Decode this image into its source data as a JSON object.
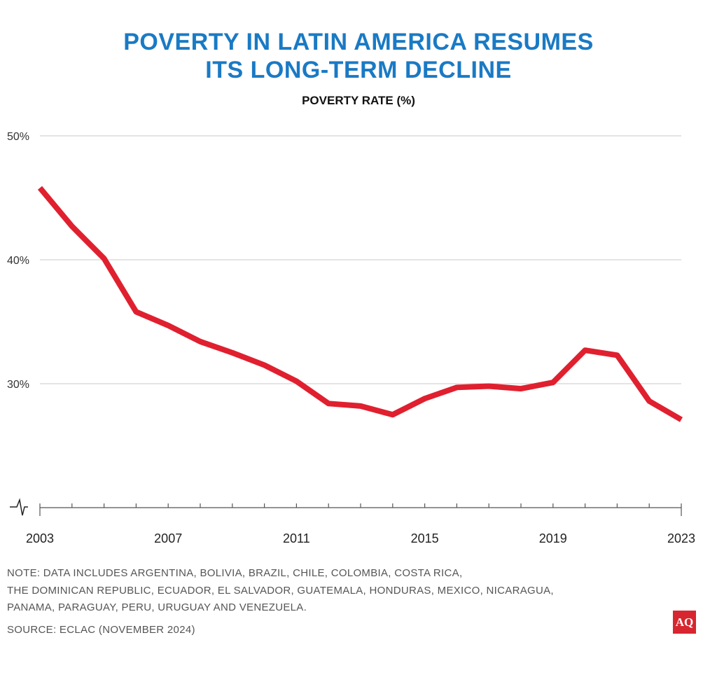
{
  "chart_data": {
    "type": "line",
    "title_lines": [
      "POVERTY IN LATIN AMERICA RESUMES",
      "ITS LONG-TERM DECLINE"
    ],
    "subtitle": "POVERTY RATE (%)",
    "xlabel": "",
    "ylabel": "Poverty rate (%)",
    "x": [
      2003,
      2004,
      2005,
      2006,
      2007,
      2008,
      2009,
      2010,
      2011,
      2012,
      2013,
      2014,
      2015,
      2016,
      2017,
      2018,
      2019,
      2020,
      2021,
      2022,
      2023
    ],
    "series": [
      {
        "name": "Poverty rate",
        "color": "#e0202f",
        "values": [
          45.8,
          42.7,
          40.1,
          35.8,
          34.7,
          33.4,
          32.5,
          31.5,
          30.2,
          28.4,
          28.2,
          27.5,
          28.8,
          29.7,
          29.8,
          29.6,
          30.1,
          32.7,
          32.3,
          28.6,
          27.1
        ]
      }
    ],
    "ylim": [
      20,
      50
    ],
    "xlim": [
      2003,
      2023
    ],
    "y_ticks": [
      {
        "value": 50,
        "label": "50%"
      },
      {
        "value": 40,
        "label": "40%"
      },
      {
        "value": 30,
        "label": "30%"
      }
    ],
    "x_ticks": [
      {
        "value": 2003,
        "label": "2003"
      },
      {
        "value": 2007,
        "label": "2007"
      },
      {
        "value": 2011,
        "label": "2011"
      },
      {
        "value": 2015,
        "label": "2015"
      },
      {
        "value": 2019,
        "label": "2019"
      },
      {
        "value": 2023,
        "label": "2023"
      }
    ],
    "grid": true,
    "axis_break": true
  },
  "footer": {
    "note_lines": [
      "NOTE: DATA INCLUDES ARGENTINA, BOLIVIA, BRAZIL, CHILE, COLOMBIA, COSTA RICA,",
      "THE DOMINICAN REPUBLIC, ECUADOR, EL SALVADOR, GUATEMALA, HONDURAS, MEXICO, NICARAGUA,",
      "PANAMA, PARAGUAY, PERU, URUGUAY AND VENEZUELA."
    ],
    "source": "SOURCE: ECLAC (NOVEMBER 2024)",
    "logo": "AQ"
  },
  "colors": {
    "title": "#1a7ac4",
    "line": "#e0202f",
    "grid": "#c8c8c8",
    "logo_bg": "#d7262f"
  }
}
